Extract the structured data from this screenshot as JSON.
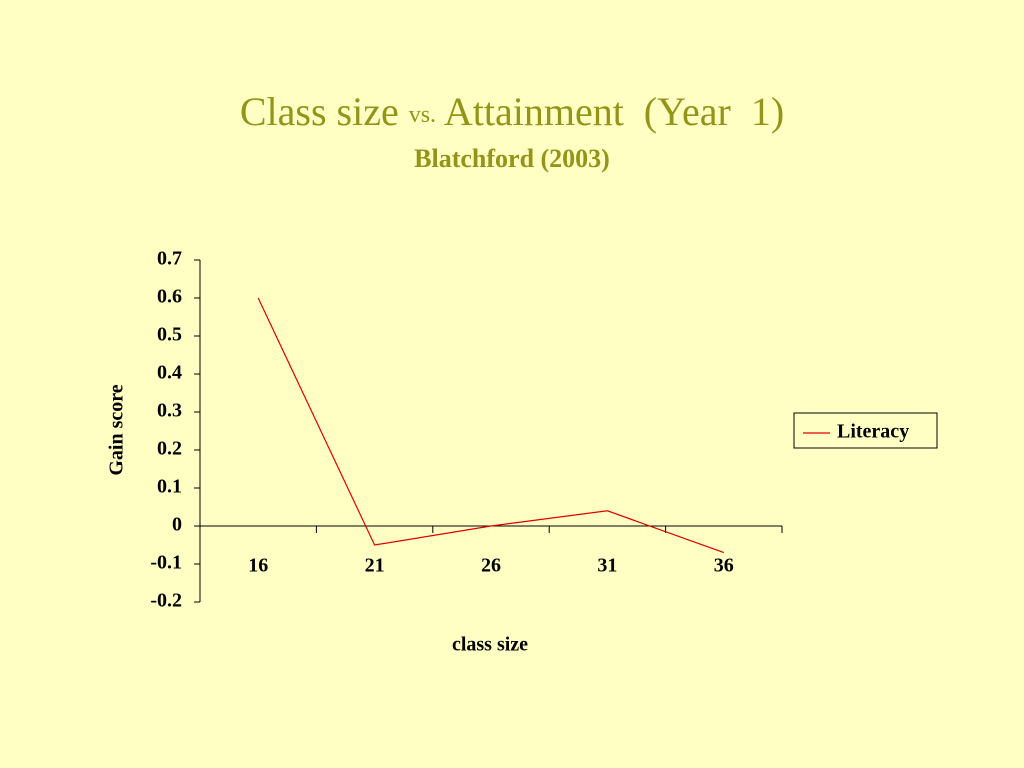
{
  "chart_data": {
    "type": "line",
    "title": [
      "Class size",
      "vs.",
      "Attainment  (Year  1)"
    ],
    "subtitle": "Blatchford (2003)",
    "x_label": "class size",
    "y_label": "Gain score",
    "categories": [
      "16",
      "21",
      "26",
      "31",
      "36"
    ],
    "series": [
      {
        "name": "Literacy",
        "color": "#e00000",
        "values": [
          0.6,
          -0.05,
          0,
          0.04,
          -0.07
        ]
      }
    ],
    "ylim": [
      -0.2,
      0.7
    ],
    "yticks": [
      -0.2,
      -0.1,
      0,
      0.1,
      0.2,
      0.3,
      0.4,
      0.5,
      0.6,
      0.7
    ],
    "legend": "right"
  }
}
